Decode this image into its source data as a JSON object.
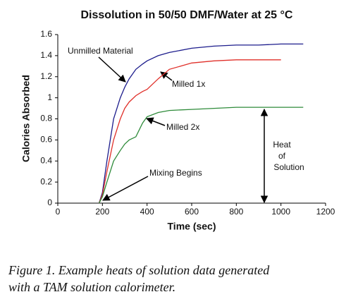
{
  "chart_data": {
    "type": "line",
    "title": "Dissolution in 50/50 DMF/Water at 25 °C",
    "x_label": "Time (sec)",
    "y_label": "Calories Absorbed",
    "x": [
      185,
      200,
      220,
      250,
      280,
      300,
      320,
      350,
      380,
      400,
      450,
      500,
      600,
      700,
      800,
      900,
      1000,
      1100
    ],
    "series": [
      {
        "name": "Unmilled Material",
        "color": "#1c1c8c",
        "values": [
          0,
          0.1,
          0.4,
          0.8,
          1.0,
          1.1,
          1.18,
          1.27,
          1.32,
          1.35,
          1.4,
          1.43,
          1.47,
          1.49,
          1.5,
          1.5,
          1.51,
          1.51
        ]
      },
      {
        "name": "Milled 1x",
        "color": "#e0302a",
        "values": [
          0,
          0.08,
          0.3,
          0.6,
          0.8,
          0.9,
          0.96,
          1.02,
          1.06,
          1.08,
          1.18,
          1.27,
          1.33,
          1.35,
          1.36,
          1.36,
          1.36,
          null
        ]
      },
      {
        "name": "Milled 2x",
        "color": "#2e8b3a",
        "values": [
          0,
          0.06,
          0.2,
          0.4,
          0.5,
          0.56,
          0.6,
          0.63,
          0.76,
          0.82,
          0.86,
          0.88,
          0.89,
          0.9,
          0.91,
          0.91,
          0.91,
          0.91
        ]
      }
    ],
    "xlim": [
      0,
      1200
    ],
    "xticks": [
      0,
      200,
      400,
      600,
      800,
      1000,
      1200
    ],
    "ylim": [
      0,
      1.6
    ],
    "yticks": [
      0,
      0.2,
      0.4,
      0.6,
      0.8,
      1,
      1.2,
      1.4,
      1.6
    ],
    "annotations": [
      "Mixing Begins"
    ],
    "heat_label": [
      "Heat",
      "of",
      "Solution"
    ]
  },
  "caption": [
    "Figure 1. Example heats of solution data generated",
    "with a TAM solution calorimeter."
  ]
}
